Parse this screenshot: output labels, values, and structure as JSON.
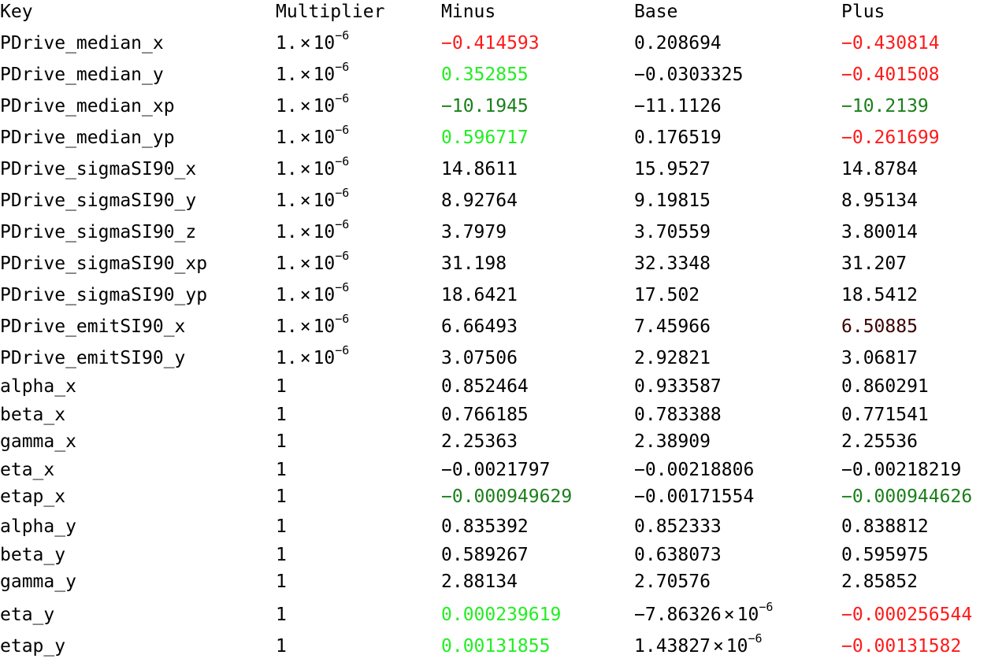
{
  "headers": [
    "Key",
    "Multiplier",
    "Minus",
    "Base",
    "Plus"
  ],
  "colors": {
    "default": "#000000",
    "bright_green": "#22ee22",
    "dark_green": "#1b7f1b",
    "red": "#ff1a1a",
    "dark_red": "#3a0000"
  },
  "rows": [
    {
      "key": "PDrive_median_x",
      "multiplier": {
        "mant": "1.",
        "exp": "-6"
      },
      "minus": {
        "mant": "-0.414593",
        "color": "red"
      },
      "base": {
        "mant": "0.208694"
      },
      "plus": {
        "mant": "-0.430814",
        "color": "red"
      }
    },
    {
      "key": "PDrive_median_y",
      "multiplier": {
        "mant": "1.",
        "exp": "-6"
      },
      "minus": {
        "mant": "0.352855",
        "color": "bright_green"
      },
      "base": {
        "mant": "-0.0303325"
      },
      "plus": {
        "mant": "-0.401508",
        "color": "red"
      }
    },
    {
      "key": "PDrive_median_xp",
      "multiplier": {
        "mant": "1.",
        "exp": "-6"
      },
      "minus": {
        "mant": "-10.1945",
        "color": "dark_green"
      },
      "base": {
        "mant": "-11.1126"
      },
      "plus": {
        "mant": "-10.2139",
        "color": "dark_green"
      }
    },
    {
      "key": "PDrive_median_yp",
      "multiplier": {
        "mant": "1.",
        "exp": "-6"
      },
      "minus": {
        "mant": "0.596717",
        "color": "bright_green"
      },
      "base": {
        "mant": "0.176519"
      },
      "plus": {
        "mant": "-0.261699",
        "color": "red"
      }
    },
    {
      "key": "PDrive_sigmaSI90_x",
      "multiplier": {
        "mant": "1.",
        "exp": "-6"
      },
      "minus": {
        "mant": "14.8611"
      },
      "base": {
        "mant": "15.9527"
      },
      "plus": {
        "mant": "14.8784"
      }
    },
    {
      "key": "PDrive_sigmaSI90_y",
      "multiplier": {
        "mant": "1.",
        "exp": "-6"
      },
      "minus": {
        "mant": "8.92764"
      },
      "base": {
        "mant": "9.19815"
      },
      "plus": {
        "mant": "8.95134"
      }
    },
    {
      "key": "PDrive_sigmaSI90_z",
      "multiplier": {
        "mant": "1.",
        "exp": "-6"
      },
      "minus": {
        "mant": "3.7979"
      },
      "base": {
        "mant": "3.70559"
      },
      "plus": {
        "mant": "3.80014"
      }
    },
    {
      "key": "PDrive_sigmaSI90_xp",
      "multiplier": {
        "mant": "1.",
        "exp": "-6"
      },
      "minus": {
        "mant": "31.198"
      },
      "base": {
        "mant": "32.3348"
      },
      "plus": {
        "mant": "31.207"
      }
    },
    {
      "key": "PDrive_sigmaSI90_yp",
      "multiplier": {
        "mant": "1.",
        "exp": "-6"
      },
      "minus": {
        "mant": "18.6421"
      },
      "base": {
        "mant": "17.502"
      },
      "plus": {
        "mant": "18.5412"
      }
    },
    {
      "key": "PDrive_emitSI90_x",
      "multiplier": {
        "mant": "1.",
        "exp": "-6"
      },
      "minus": {
        "mant": "6.66493"
      },
      "base": {
        "mant": "7.45966"
      },
      "plus": {
        "mant": "6.50885",
        "color": "dark_red"
      }
    },
    {
      "key": "PDrive_emitSI90_y",
      "multiplier": {
        "mant": "1.",
        "exp": "-6"
      },
      "minus": {
        "mant": "3.07506"
      },
      "base": {
        "mant": "2.92821"
      },
      "plus": {
        "mant": "3.06817"
      }
    },
    {
      "key": "alpha_x",
      "multiplier": {
        "mant": "1"
      },
      "minus": {
        "mant": "0.852464"
      },
      "base": {
        "mant": "0.933587"
      },
      "plus": {
        "mant": "0.860291"
      }
    },
    {
      "key": "beta_x",
      "multiplier": {
        "mant": "1"
      },
      "minus": {
        "mant": "0.766185"
      },
      "base": {
        "mant": "0.783388"
      },
      "plus": {
        "mant": "0.771541"
      }
    },
    {
      "key": "gamma_x",
      "multiplier": {
        "mant": "1"
      },
      "minus": {
        "mant": "2.25363"
      },
      "base": {
        "mant": "2.38909"
      },
      "plus": {
        "mant": "2.25536"
      }
    },
    {
      "key": "eta_x",
      "multiplier": {
        "mant": "1"
      },
      "minus": {
        "mant": "-0.0021797"
      },
      "base": {
        "mant": "-0.00218806"
      },
      "plus": {
        "mant": "-0.00218219"
      }
    },
    {
      "key": "etap_x",
      "multiplier": {
        "mant": "1"
      },
      "minus": {
        "mant": "-0.000949629",
        "color": "dark_green"
      },
      "base": {
        "mant": "-0.00171554"
      },
      "plus": {
        "mant": "-0.000944626",
        "color": "dark_green"
      }
    },
    {
      "key": "alpha_y",
      "multiplier": {
        "mant": "1"
      },
      "minus": {
        "mant": "0.835392"
      },
      "base": {
        "mant": "0.852333"
      },
      "plus": {
        "mant": "0.838812"
      }
    },
    {
      "key": "beta_y",
      "multiplier": {
        "mant": "1"
      },
      "minus": {
        "mant": "0.589267"
      },
      "base": {
        "mant": "0.638073"
      },
      "plus": {
        "mant": "0.595975"
      }
    },
    {
      "key": "gamma_y",
      "multiplier": {
        "mant": "1"
      },
      "minus": {
        "mant": "2.88134"
      },
      "base": {
        "mant": "2.70576"
      },
      "plus": {
        "mant": "2.85852"
      }
    },
    {
      "key": "eta_y",
      "multiplier": {
        "mant": "1"
      },
      "minus": {
        "mant": "0.000239619",
        "color": "bright_green"
      },
      "base": {
        "mant": "-7.86326",
        "exp": "-6"
      },
      "plus": {
        "mant": "-0.000256544",
        "color": "red"
      }
    },
    {
      "key": "etap_y",
      "multiplier": {
        "mant": "1"
      },
      "minus": {
        "mant": "0.00131855",
        "color": "bright_green"
      },
      "base": {
        "mant": "1.43827",
        "exp": "-6"
      },
      "plus": {
        "mant": "-0.00131582",
        "color": "red"
      }
    }
  ]
}
